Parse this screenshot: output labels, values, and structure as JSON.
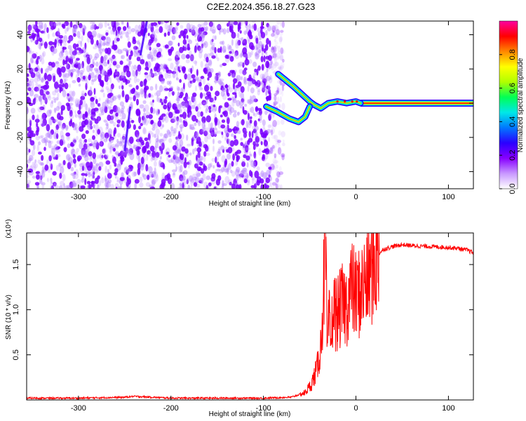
{
  "title": "C2E2.2024.356.18.27.G23",
  "chart_data": [
    {
      "type": "heatmap",
      "xlabel": "Height of straight line (km)",
      "ylabel": "Frequency (Hz)",
      "xlim": [
        -356,
        127
      ],
      "ylim": [
        -50,
        48
      ],
      "xticks": [
        "-300",
        "-200",
        "-100",
        "0",
        "100"
      ],
      "xtick_values": [
        -300,
        -200,
        -100,
        0,
        100
      ],
      "yticks": [
        "-40",
        "-20",
        "0",
        "20",
        "40"
      ],
      "ytick_values": [
        -40,
        -20,
        0,
        20,
        40
      ],
      "colorbar": {
        "label": "Normalized spectral amplitude",
        "ticks": [
          "0.0",
          "0.2",
          "0.4",
          "0.6",
          "0.8"
        ],
        "tick_values": [
          0.0,
          0.2,
          0.4,
          0.6,
          0.8
        ],
        "range": [
          0,
          1
        ],
        "colors": [
          "#ffffff",
          "#c898ff",
          "#8800ff",
          "#2b00ff",
          "#0077ff",
          "#00e8e8",
          "#00ff55",
          "#b0ff00",
          "#ffff00",
          "#ff8800",
          "#ff0000",
          "#ff00a0"
        ]
      },
      "noise_region_x": [
        -356,
        -92
      ],
      "features": [
        {
          "name": "carrier",
          "x": [
            5,
            127
          ],
          "y": [
            0,
            0
          ],
          "amplitude": 0.95
        },
        {
          "name": "upper-branch",
          "x": [
            -84,
            -68,
            -56,
            -50,
            -45,
            -38,
            -30,
            -20,
            -10,
            0,
            5
          ],
          "y": [
            17,
            10,
            4,
            1,
            -1,
            -3,
            0,
            1,
            0,
            1,
            0
          ],
          "amplitude": 0.5
        },
        {
          "name": "lower-branch",
          "x": [
            -97,
            -85,
            -72,
            -62,
            -55,
            -50
          ],
          "y": [
            -2,
            -5,
            -9,
            -11,
            -8,
            -2
          ],
          "amplitude": 0.5
        },
        {
          "name": "streak-a",
          "x": [
            -250,
            -244
          ],
          "y": [
            -28,
            -2
          ],
          "amplitude": 0.3
        },
        {
          "name": "streak-b",
          "x": [
            -233,
            -226
          ],
          "y": [
            28,
            48
          ],
          "amplitude": 0.25
        }
      ]
    },
    {
      "type": "line",
      "xlabel": "Height of straight line (km)",
      "ylabel": "SNR (10 * v/v)",
      "multiplier": "(x10⁴)",
      "xlim": [
        -356,
        127
      ],
      "ylim": [
        0,
        1.85
      ],
      "xticks": [
        "-300",
        "-200",
        "-100",
        "0",
        "100"
      ],
      "xtick_values": [
        -300,
        -200,
        -100,
        0,
        100
      ],
      "yticks": [
        "0.5",
        "1.0",
        "1.5"
      ],
      "ytick_values": [
        0.5,
        1.0,
        1.5
      ],
      "color": "#ff0000",
      "series": [
        {
          "x": [
            -356,
            -300,
            -250,
            -240,
            -200,
            -150,
            -100,
            -70,
            -55,
            -48,
            -42,
            -38,
            -35,
            -33,
            -31,
            -29,
            -27,
            -25,
            -20,
            -15,
            -10,
            -5,
            0,
            5,
            10,
            15,
            20,
            25,
            30,
            40,
            50,
            60,
            80,
            100,
            110,
            120,
            127
          ],
          "y": [
            0.02,
            0.02,
            0.03,
            0.04,
            0.02,
            0.02,
            0.02,
            0.03,
            0.08,
            0.18,
            0.35,
            0.6,
            1.2,
            1.75,
            0.5,
            0.9,
            0.6,
            1.0,
            0.95,
            1.05,
            1.05,
            1.25,
            1.15,
            1.2,
            1.3,
            1.4,
            1.52,
            1.62,
            1.67,
            1.7,
            1.72,
            1.71,
            1.7,
            1.69,
            1.68,
            1.66,
            1.63
          ]
        }
      ]
    }
  ]
}
